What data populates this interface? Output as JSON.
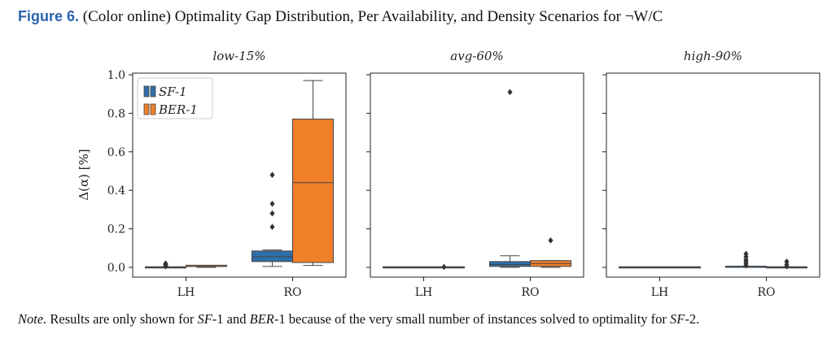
{
  "caption": {
    "figure_label": "Figure 6.",
    "text": "(Color online) Optimality Gap Distribution, Per Availability, and Density Scenarios for ¬W/C"
  },
  "note": {
    "label": "Note.",
    "text_1": " Results are only shown for ",
    "sf1": "SF",
    "text_2": "-1 and ",
    "ber1": "BER",
    "text_3": "-1 because of the very small number of instances solved to optimality for ",
    "sf2": "SF",
    "text_4": "-2."
  },
  "colors": {
    "SF-1": "#2f6fa8",
    "BER-1": "#f07f2a"
  },
  "chart_data": {
    "type": "box",
    "ylabel": "Δ(α) [%]",
    "ylim": [
      0,
      1.0
    ],
    "yticks": [
      "0.0",
      "0.2",
      "0.4",
      "0.6",
      "0.8",
      "1.0"
    ],
    "legend": {
      "position": "top-left",
      "entries": [
        "SF-1",
        "BER-1"
      ]
    },
    "categories": [
      "LH",
      "RO"
    ],
    "panels": [
      {
        "title": "low-15%",
        "boxes": [
          {
            "category": "LH",
            "series": "SF-1",
            "min": 0.0,
            "q1": 0.0,
            "median": 0.0,
            "q3": 0.0,
            "max": 0.0,
            "outliers": [
              0.005,
              0.01,
              0.015,
              0.02
            ]
          },
          {
            "category": "LH",
            "series": "BER-1",
            "min": 0.0,
            "q1": 0.002,
            "median": 0.004,
            "q3": 0.008,
            "max": 0.01,
            "outliers": []
          },
          {
            "category": "RO",
            "series": "SF-1",
            "min": 0.005,
            "q1": 0.03,
            "median": 0.055,
            "q3": 0.085,
            "max": 0.09,
            "outliers": [
              0.21,
              0.28,
              0.33,
              0.48
            ]
          },
          {
            "category": "RO",
            "series": "BER-1",
            "min": 0.01,
            "q1": 0.025,
            "median": 0.44,
            "q3": 0.77,
            "max": 0.97,
            "outliers": []
          }
        ]
      },
      {
        "title": "avg-60%",
        "boxes": [
          {
            "category": "LH",
            "series": "SF-1",
            "min": 0.0,
            "q1": 0.0,
            "median": 0.0,
            "q3": 0.0,
            "max": 0.0,
            "outliers": []
          },
          {
            "category": "LH",
            "series": "BER-1",
            "min": 0.0,
            "q1": 0.0,
            "median": 0.0,
            "q3": 0.0,
            "max": 0.0,
            "outliers": [
              0.002
            ]
          },
          {
            "category": "RO",
            "series": "SF-1",
            "min": 0.0,
            "q1": 0.005,
            "median": 0.015,
            "q3": 0.03,
            "max": 0.06,
            "outliers": [
              0.91
            ]
          },
          {
            "category": "RO",
            "series": "BER-1",
            "min": 0.0,
            "q1": 0.005,
            "median": 0.02,
            "q3": 0.035,
            "max": 0.035,
            "outliers": [
              0.14
            ]
          }
        ]
      },
      {
        "title": "high-90%",
        "boxes": [
          {
            "category": "LH",
            "series": "SF-1",
            "min": 0.0,
            "q1": 0.0,
            "median": 0.0,
            "q3": 0.0,
            "max": 0.0,
            "outliers": []
          },
          {
            "category": "LH",
            "series": "BER-1",
            "min": 0.0,
            "q1": 0.0,
            "median": 0.0,
            "q3": 0.0,
            "max": 0.0,
            "outliers": []
          },
          {
            "category": "RO",
            "series": "SF-1",
            "min": 0.0,
            "q1": 0.0,
            "median": 0.0,
            "q3": 0.003,
            "max": 0.005,
            "outliers": [
              0.01,
              0.02,
              0.03,
              0.04,
              0.055,
              0.07
            ]
          },
          {
            "category": "RO",
            "series": "BER-1",
            "min": 0.0,
            "q1": 0.0,
            "median": 0.0,
            "q3": 0.0,
            "max": 0.0,
            "outliers": [
              0.005,
              0.015,
              0.03
            ]
          }
        ]
      }
    ]
  }
}
